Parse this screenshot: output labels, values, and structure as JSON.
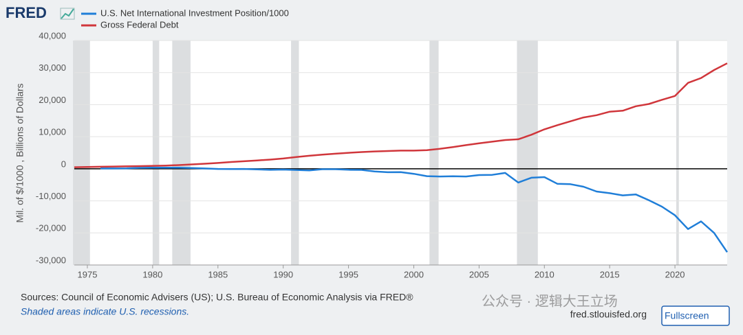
{
  "header": {
    "logo": "FRED"
  },
  "chart_data": {
    "type": "line",
    "y_label": "Mil. of $/1000 , Billions of Dollars",
    "x": [
      1974,
      1975,
      1976,
      1977,
      1978,
      1979,
      1980,
      1981,
      1982,
      1983,
      1984,
      1985,
      1986,
      1987,
      1988,
      1989,
      1990,
      1991,
      1992,
      1993,
      1994,
      1995,
      1996,
      1997,
      1998,
      1999,
      2000,
      2001,
      2002,
      2003,
      2004,
      2005,
      2006,
      2007,
      2008,
      2009,
      2010,
      2011,
      2012,
      2013,
      2014,
      2015,
      2016,
      2017,
      2018,
      2019,
      2020,
      2021,
      2022,
      2023,
      2024
    ],
    "series": [
      {
        "name": "U.S. Net International Investment Position/1000",
        "color": "#1f7ed8",
        "values": [
          null,
          null,
          100,
          100,
          150,
          300,
          360,
          340,
          330,
          250,
          100,
          -60,
          -100,
          -60,
          -180,
          -320,
          -250,
          -370,
          -500,
          -140,
          -140,
          -300,
          -360,
          -820,
          -1070,
          -1040,
          -1580,
          -2290,
          -2400,
          -2350,
          -2400,
          -1950,
          -1900,
          -1300,
          -4300,
          -2800,
          -2600,
          -4700,
          -4800,
          -5600,
          -7100,
          -7600,
          -8300,
          -8000,
          -9800,
          -11800,
          -14500,
          -18800,
          -16400,
          -20000,
          -26000
        ]
      },
      {
        "name": "Gross Federal Debt",
        "color": "#d0363b",
        "values": [
          480,
          540,
          630,
          700,
          780,
          830,
          910,
          1000,
          1140,
          1370,
          1570,
          1820,
          2120,
          2350,
          2600,
          2860,
          3210,
          3660,
          4060,
          4410,
          4690,
          4970,
          5220,
          5410,
          5530,
          5660,
          5660,
          5800,
          6230,
          6780,
          7380,
          7930,
          8450,
          8950,
          9200,
          10600,
          12300,
          13600,
          14800,
          16000,
          16700,
          17800,
          18100,
          19500,
          20200,
          21500,
          22700,
          26800,
          28300,
          30800,
          32900
        ]
      }
    ],
    "recessions": [
      [
        1973.9,
        1975.2
      ],
      [
        1980.0,
        1980.5
      ],
      [
        1981.5,
        1982.9
      ],
      [
        1990.6,
        1991.2
      ],
      [
        2001.2,
        2001.9
      ],
      [
        2007.9,
        2009.5
      ],
      [
        2020.1,
        2020.3
      ]
    ],
    "xlim": [
      1974,
      2024
    ],
    "xticks": [
      1975,
      1980,
      1985,
      1990,
      1995,
      2000,
      2005,
      2010,
      2015,
      2020
    ],
    "ylim": [
      -30000,
      40000
    ],
    "yticks": [
      {
        "value": -30000,
        "label": "-30,000"
      },
      {
        "value": -20000,
        "label": "-20,000"
      },
      {
        "value": -10000,
        "label": "-10,000"
      },
      0,
      {
        "value": 10000,
        "label": "10,000"
      },
      {
        "value": 20000,
        "label": "20,000"
      },
      {
        "value": 30000,
        "label": "30,000"
      },
      {
        "value": 40000,
        "label": "40,000"
      }
    ],
    "grid": true
  },
  "footer": {
    "sources": "Sources: Council of Economic Advisers (US); U.S. Bureau of Economic Analysis via FRED®",
    "shaded_note": "Shaded areas indicate U.S. recessions.",
    "site": "fred.stlouisfed.org",
    "fullscreen": "Fullscreen",
    "watermark": "公众号 · 逻辑大王立场"
  }
}
